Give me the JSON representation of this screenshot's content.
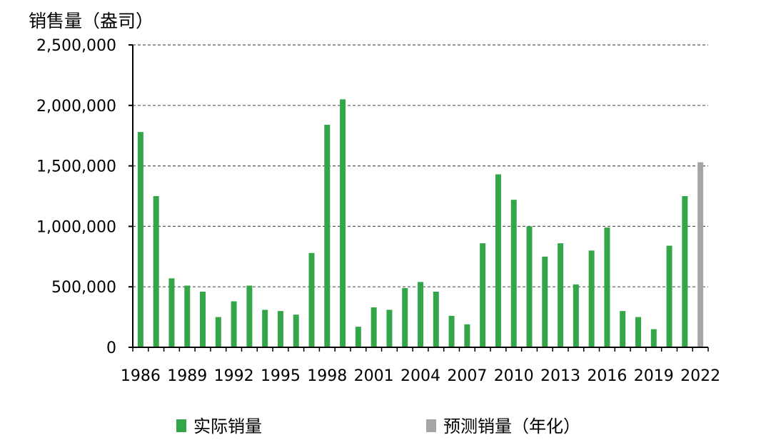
{
  "chart_data": {
    "type": "bar",
    "ylabel": "销售量（盎司）",
    "ylim": [
      0,
      2500000
    ],
    "y_ticks": [
      0,
      500000,
      1000000,
      1500000,
      2000000,
      2500000
    ],
    "y_tick_labels": [
      "0",
      "500,000",
      "1,000,000",
      "1,500,000",
      "2,000,000",
      "2,500,000"
    ],
    "x_tick_labels": [
      "1986",
      "1989",
      "1992",
      "1995",
      "1998",
      "2001",
      "2004",
      "2007",
      "2010",
      "2013",
      "2016",
      "2019",
      "2022"
    ],
    "grid": true,
    "legend_position": "bottom",
    "categories": [
      "1986",
      "1987",
      "1988",
      "1989",
      "1990",
      "1991",
      "1992",
      "1993",
      "1994",
      "1995",
      "1996",
      "1997",
      "1998",
      "1999",
      "2000",
      "2001",
      "2002",
      "2003",
      "2004",
      "2005",
      "2006",
      "2007",
      "2008",
      "2009",
      "2010",
      "2011",
      "2012",
      "2013",
      "2014",
      "2015",
      "2016",
      "2017",
      "2018",
      "2019",
      "2020",
      "2021",
      "2022"
    ],
    "series": [
      {
        "name": "实际销量",
        "color": "#33a64a",
        "values": [
          1780000,
          1250000,
          570000,
          510000,
          460000,
          250000,
          380000,
          510000,
          310000,
          300000,
          270000,
          780000,
          1840000,
          2050000,
          170000,
          330000,
          310000,
          490000,
          540000,
          460000,
          260000,
          190000,
          860000,
          1430000,
          1220000,
          1000000,
          750000,
          860000,
          520000,
          800000,
          990000,
          300000,
          250000,
          150000,
          840000,
          1250000,
          null
        ]
      },
      {
        "name": "预测销量（年化）",
        "color": "#a6a6a6",
        "values": [
          null,
          null,
          null,
          null,
          null,
          null,
          null,
          null,
          null,
          null,
          null,
          null,
          null,
          null,
          null,
          null,
          null,
          null,
          null,
          null,
          null,
          null,
          null,
          null,
          null,
          null,
          null,
          null,
          null,
          null,
          null,
          null,
          null,
          null,
          null,
          null,
          1530000
        ]
      }
    ]
  }
}
